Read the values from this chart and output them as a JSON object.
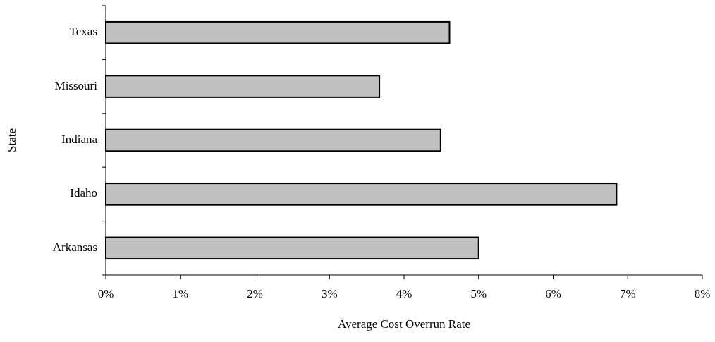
{
  "chart_data": {
    "type": "bar",
    "orientation": "horizontal",
    "xlabel": "Average Cost Overrun Rate",
    "ylabel": "State",
    "categories": [
      "Texas",
      "Missouri",
      "Indiana",
      "Idaho",
      "Arkansas"
    ],
    "series": [
      {
        "color": "#c0c0c0",
        "values": [
          4.61,
          3.67,
          4.49,
          6.85,
          5.0
        ]
      }
    ],
    "xlim": [
      0,
      8
    ],
    "xticks": [
      {
        "value": 0,
        "label": "0%"
      },
      {
        "value": 1,
        "label": "1%"
      },
      {
        "value": 2,
        "label": "2%"
      },
      {
        "value": 3,
        "label": "3%"
      },
      {
        "value": 4,
        "label": "4%"
      },
      {
        "value": 5,
        "label": "5%"
      },
      {
        "value": 6,
        "label": "6%"
      },
      {
        "value": 7,
        "label": "7%"
      },
      {
        "value": 8,
        "label": "8%"
      }
    ],
    "grid": false
  }
}
